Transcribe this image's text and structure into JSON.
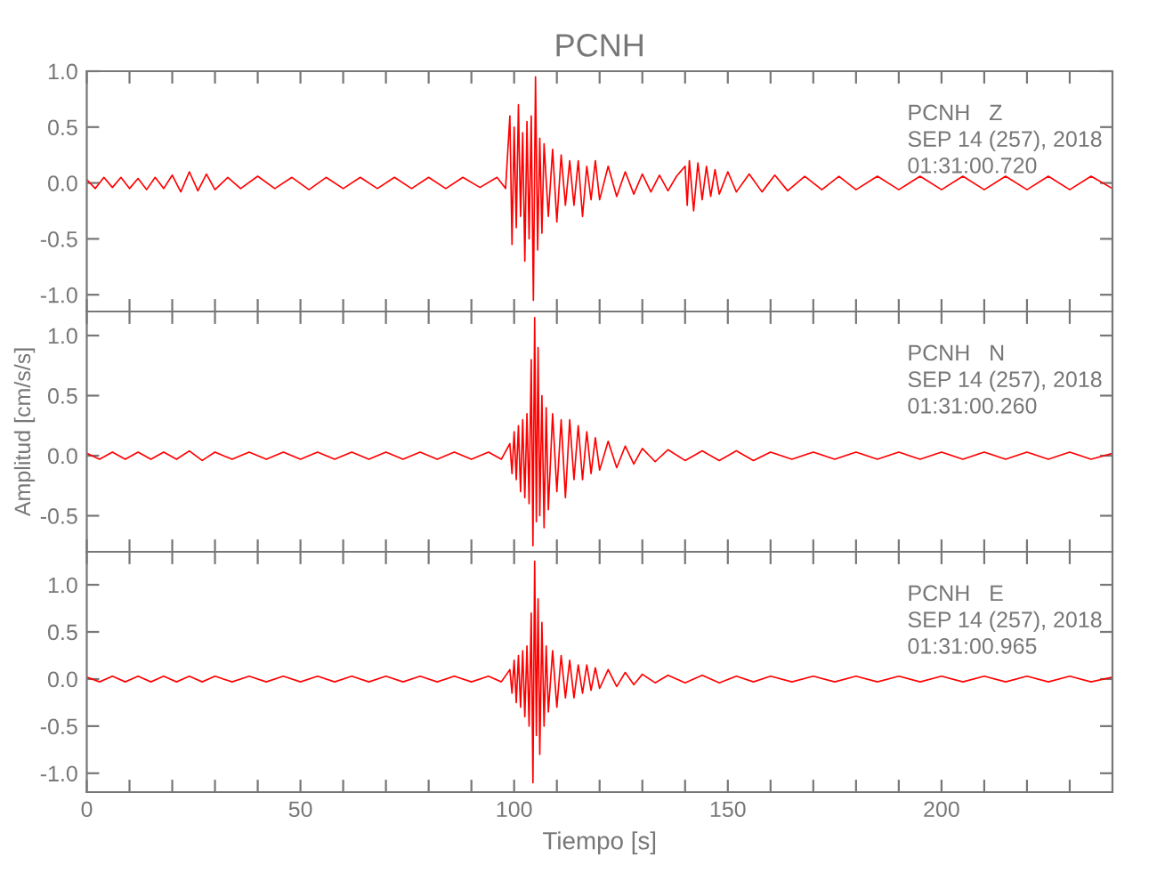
{
  "chart_data": [
    {
      "type": "line",
      "title": "PCNH",
      "annotations": [
        "PCNH   Z",
        "SEP 14 (257), 2018",
        "01:31:00.720"
      ],
      "tick_labels": "y",
      "xlim": [
        0,
        240
      ],
      "ylim": [
        -1.15,
        1.0
      ],
      "xticks": [
        0,
        {
          "value": 10,
          "label": null
        },
        {
          "value": 20,
          "label": null
        },
        {
          "value": 30,
          "label": null
        },
        {
          "value": 40,
          "label": null
        },
        50,
        {
          "value": 60,
          "label": null
        },
        {
          "value": 70,
          "label": null
        },
        {
          "value": 80,
          "label": null
        },
        {
          "value": 90,
          "label": null
        },
        100,
        {
          "value": 110,
          "label": null
        },
        {
          "value": 120,
          "label": null
        },
        {
          "value": 130,
          "label": null
        },
        {
          "value": 140,
          "label": null
        },
        150,
        {
          "value": 160,
          "label": null
        },
        {
          "value": 170,
          "label": null
        },
        {
          "value": 180,
          "label": null
        },
        {
          "value": 190,
          "label": null
        },
        200,
        {
          "value": 210,
          "label": null
        },
        {
          "value": 220,
          "label": null
        },
        {
          "value": 230,
          "label": null
        }
      ],
      "yticks": [
        {
          "value": -1.0,
          "label": "-1.0"
        },
        {
          "value": -0.5,
          "label": "-0.5"
        },
        {
          "value": 0.0,
          "label": "0.0"
        },
        {
          "value": 0.5,
          "label": "0.5"
        },
        {
          "value": 1.0,
          "label": "1.0"
        }
      ],
      "x": [
        0,
        2,
        4,
        6,
        8,
        10,
        12,
        14,
        16,
        18,
        20,
        22,
        24,
        26,
        28,
        30,
        33,
        36,
        40,
        44,
        48,
        52,
        56,
        60,
        64,
        68,
        72,
        76,
        80,
        84,
        88,
        92,
        96,
        98,
        99,
        99.5,
        100,
        100.5,
        101,
        101.5,
        102,
        102.5,
        103,
        103.5,
        104,
        104.5,
        105,
        105.5,
        106,
        106.5,
        107,
        108,
        109,
        110,
        111,
        112,
        113,
        114,
        115,
        116,
        117,
        118,
        119,
        120,
        122,
        124,
        126,
        128,
        130,
        132,
        134,
        136,
        138,
        140,
        140.5,
        141,
        142,
        143,
        144,
        145,
        146,
        147,
        148,
        150,
        152,
        155,
        158,
        161,
        164,
        168,
        172,
        176,
        180,
        185,
        190,
        195,
        200,
        205,
        210,
        215,
        220,
        225,
        230,
        235,
        240
      ],
      "series": [
        {
          "color": "#ff0000",
          "values": [
            0.03,
            -0.05,
            0.05,
            -0.04,
            0.05,
            -0.05,
            0.04,
            -0.06,
            0.05,
            -0.05,
            0.07,
            -0.08,
            0.1,
            -0.07,
            0.08,
            -0.06,
            0.05,
            -0.05,
            0.06,
            -0.05,
            0.05,
            -0.06,
            0.05,
            -0.05,
            0.05,
            -0.05,
            0.05,
            -0.05,
            0.05,
            -0.05,
            0.05,
            -0.04,
            0.05,
            -0.05,
            0.6,
            -0.55,
            0.5,
            -0.4,
            0.7,
            -0.3,
            0.45,
            -0.7,
            0.55,
            -0.5,
            0.6,
            -1.05,
            0.95,
            -0.6,
            0.4,
            -0.45,
            0.35,
            -0.3,
            0.3,
            -0.35,
            0.25,
            -0.2,
            0.2,
            -0.2,
            0.2,
            -0.3,
            0.15,
            -0.15,
            0.2,
            -0.15,
            0.15,
            -0.12,
            0.1,
            -0.1,
            0.08,
            -0.08,
            0.07,
            -0.07,
            0.06,
            0.15,
            -0.2,
            0.2,
            -0.25,
            0.18,
            -0.15,
            0.15,
            -0.12,
            0.12,
            -0.1,
            0.1,
            -0.08,
            0.08,
            -0.08,
            0.07,
            -0.07,
            0.06,
            -0.06,
            0.06,
            -0.06,
            0.06,
            -0.06,
            0.06,
            -0.06,
            0.06,
            -0.06,
            0.06,
            -0.06,
            0.06,
            -0.06,
            0.06,
            -0.05
          ]
        }
      ]
    },
    {
      "type": "line",
      "ylabel": "Amplitud [cm/s/s]",
      "annotations": [
        "PCNH   N",
        "SEP 14 (257), 2018",
        "01:31:00.260"
      ],
      "tick_labels": "y",
      "xlim": [
        0,
        240
      ],
      "ylim": [
        -0.8,
        1.2
      ],
      "xticks": [
        0,
        {
          "value": 10,
          "label": null
        },
        {
          "value": 20,
          "label": null
        },
        {
          "value": 30,
          "label": null
        },
        {
          "value": 40,
          "label": null
        },
        50,
        {
          "value": 60,
          "label": null
        },
        {
          "value": 70,
          "label": null
        },
        {
          "value": 80,
          "label": null
        },
        {
          "value": 90,
          "label": null
        },
        100,
        {
          "value": 110,
          "label": null
        },
        {
          "value": 120,
          "label": null
        },
        {
          "value": 130,
          "label": null
        },
        {
          "value": 140,
          "label": null
        },
        150,
        {
          "value": 160,
          "label": null
        },
        {
          "value": 170,
          "label": null
        },
        {
          "value": 180,
          "label": null
        },
        {
          "value": 190,
          "label": null
        },
        200,
        {
          "value": 210,
          "label": null
        },
        {
          "value": 220,
          "label": null
        },
        {
          "value": 230,
          "label": null
        }
      ],
      "yticks": [
        {
          "value": -0.5,
          "label": "-0.5"
        },
        {
          "value": 0.0,
          "label": "0.0"
        },
        {
          "value": 0.5,
          "label": "0.5"
        },
        {
          "value": 1.0,
          "label": "1.0"
        }
      ],
      "x": [
        0,
        3,
        6,
        9,
        12,
        15,
        18,
        21,
        24,
        27,
        30,
        34,
        38,
        42,
        46,
        50,
        54,
        58,
        62,
        66,
        70,
        74,
        78,
        82,
        86,
        90,
        94,
        97,
        99,
        99.5,
        100,
        100.5,
        101,
        101.5,
        102,
        102.5,
        103,
        103.5,
        104,
        104.4,
        104.8,
        105.2,
        105.6,
        106,
        106.5,
        107,
        107.5,
        108,
        109,
        110,
        111,
        112,
        113,
        114,
        115,
        116,
        117,
        118,
        119,
        120,
        122,
        124,
        126,
        128,
        130,
        133,
        136,
        140,
        144,
        148,
        152,
        156,
        160,
        165,
        170,
        175,
        180,
        185,
        190,
        195,
        200,
        205,
        210,
        215,
        220,
        225,
        230,
        235,
        240
      ],
      "series": [
        {
          "color": "#ff0000",
          "values": [
            0.02,
            -0.03,
            0.03,
            -0.03,
            0.03,
            -0.03,
            0.03,
            -0.03,
            0.04,
            -0.04,
            0.03,
            -0.03,
            0.03,
            -0.03,
            0.03,
            -0.03,
            0.03,
            -0.03,
            0.03,
            -0.03,
            0.03,
            -0.03,
            0.03,
            -0.03,
            0.03,
            -0.03,
            0.03,
            -0.03,
            0.1,
            -0.15,
            0.2,
            -0.2,
            0.25,
            -0.3,
            0.3,
            -0.35,
            0.35,
            -0.4,
            0.8,
            -0.75,
            1.15,
            -0.55,
            0.9,
            -0.5,
            0.5,
            -0.6,
            0.4,
            -0.45,
            0.35,
            -0.3,
            0.3,
            -0.35,
            0.3,
            -0.2,
            0.25,
            -0.2,
            0.2,
            -0.15,
            0.15,
            -0.12,
            0.12,
            -0.1,
            0.08,
            -0.07,
            0.06,
            -0.05,
            0.05,
            -0.04,
            0.04,
            -0.04,
            0.04,
            -0.04,
            0.03,
            -0.03,
            0.03,
            -0.03,
            0.03,
            -0.03,
            0.03,
            -0.03,
            0.03,
            -0.03,
            0.03,
            -0.03,
            0.03,
            -0.03,
            0.03,
            -0.03,
            0.02
          ]
        }
      ]
    },
    {
      "type": "line",
      "xlabel": "Tiempo [s]",
      "annotations": [
        "PCNH   E",
        "SEP 14 (257), 2018",
        "01:31:00.965"
      ],
      "xlim": [
        0,
        240
      ],
      "ylim": [
        -1.2,
        1.35
      ],
      "xticks": [
        0,
        {
          "value": 10,
          "label": null
        },
        {
          "value": 20,
          "label": null
        },
        {
          "value": 30,
          "label": null
        },
        {
          "value": 40,
          "label": null
        },
        50,
        {
          "value": 60,
          "label": null
        },
        {
          "value": 70,
          "label": null
        },
        {
          "value": 80,
          "label": null
        },
        {
          "value": 90,
          "label": null
        },
        100,
        {
          "value": 110,
          "label": null
        },
        {
          "value": 120,
          "label": null
        },
        {
          "value": 130,
          "label": null
        },
        {
          "value": 140,
          "label": null
        },
        150,
        {
          "value": 160,
          "label": null
        },
        {
          "value": 170,
          "label": null
        },
        {
          "value": 180,
          "label": null
        },
        {
          "value": 190,
          "label": null
        },
        200,
        {
          "value": 210,
          "label": null
        },
        {
          "value": 220,
          "label": null
        },
        {
          "value": 230,
          "label": null
        }
      ],
      "yticks": [
        {
          "value": -1.0,
          "label": "-1.0"
        },
        {
          "value": -0.5,
          "label": "-0.5"
        },
        {
          "value": 0.0,
          "label": "0.0"
        },
        {
          "value": 0.5,
          "label": "0.5"
        },
        {
          "value": 1.0,
          "label": "1.0"
        }
      ],
      "x": [
        0,
        3,
        6,
        9,
        12,
        15,
        18,
        21,
        24,
        27,
        30,
        34,
        38,
        42,
        46,
        50,
        54,
        58,
        62,
        66,
        70,
        74,
        78,
        82,
        86,
        90,
        94,
        97,
        99,
        99.5,
        100,
        100.5,
        101,
        101.5,
        102,
        102.5,
        103,
        103.5,
        104,
        104.4,
        104.8,
        105.2,
        105.6,
        106,
        106.5,
        107,
        107.5,
        108,
        109,
        110,
        111,
        112,
        113,
        114,
        115,
        116,
        117,
        118,
        119,
        120,
        122,
        124,
        126,
        128,
        130,
        133,
        136,
        140,
        144,
        148,
        152,
        156,
        160,
        165,
        170,
        175,
        180,
        185,
        190,
        195,
        200,
        205,
        210,
        215,
        220,
        225,
        230,
        235,
        240
      ],
      "series": [
        {
          "color": "#ff0000",
          "values": [
            0.02,
            -0.03,
            0.03,
            -0.03,
            0.03,
            -0.03,
            0.03,
            -0.03,
            0.03,
            -0.03,
            0.03,
            -0.03,
            0.03,
            -0.03,
            0.03,
            -0.03,
            0.03,
            -0.03,
            0.03,
            -0.03,
            0.03,
            -0.03,
            0.03,
            -0.03,
            0.03,
            -0.03,
            0.03,
            -0.03,
            0.1,
            -0.15,
            0.2,
            -0.25,
            0.25,
            -0.3,
            0.3,
            -0.4,
            0.35,
            -0.5,
            0.7,
            -1.1,
            1.25,
            -0.6,
            0.85,
            -0.8,
            0.6,
            -0.5,
            0.35,
            -0.35,
            0.3,
            -0.3,
            0.25,
            -0.2,
            0.2,
            -0.2,
            0.15,
            -0.15,
            0.15,
            -0.12,
            0.12,
            -0.1,
            0.1,
            -0.08,
            0.07,
            -0.06,
            0.05,
            -0.04,
            0.04,
            -0.04,
            0.04,
            -0.04,
            0.03,
            -0.03,
            0.03,
            -0.03,
            0.03,
            -0.03,
            0.03,
            -0.03,
            0.03,
            -0.03,
            0.03,
            -0.03,
            0.03,
            -0.03,
            0.03,
            -0.03,
            0.03,
            -0.03,
            0.02
          ]
        }
      ]
    }
  ]
}
